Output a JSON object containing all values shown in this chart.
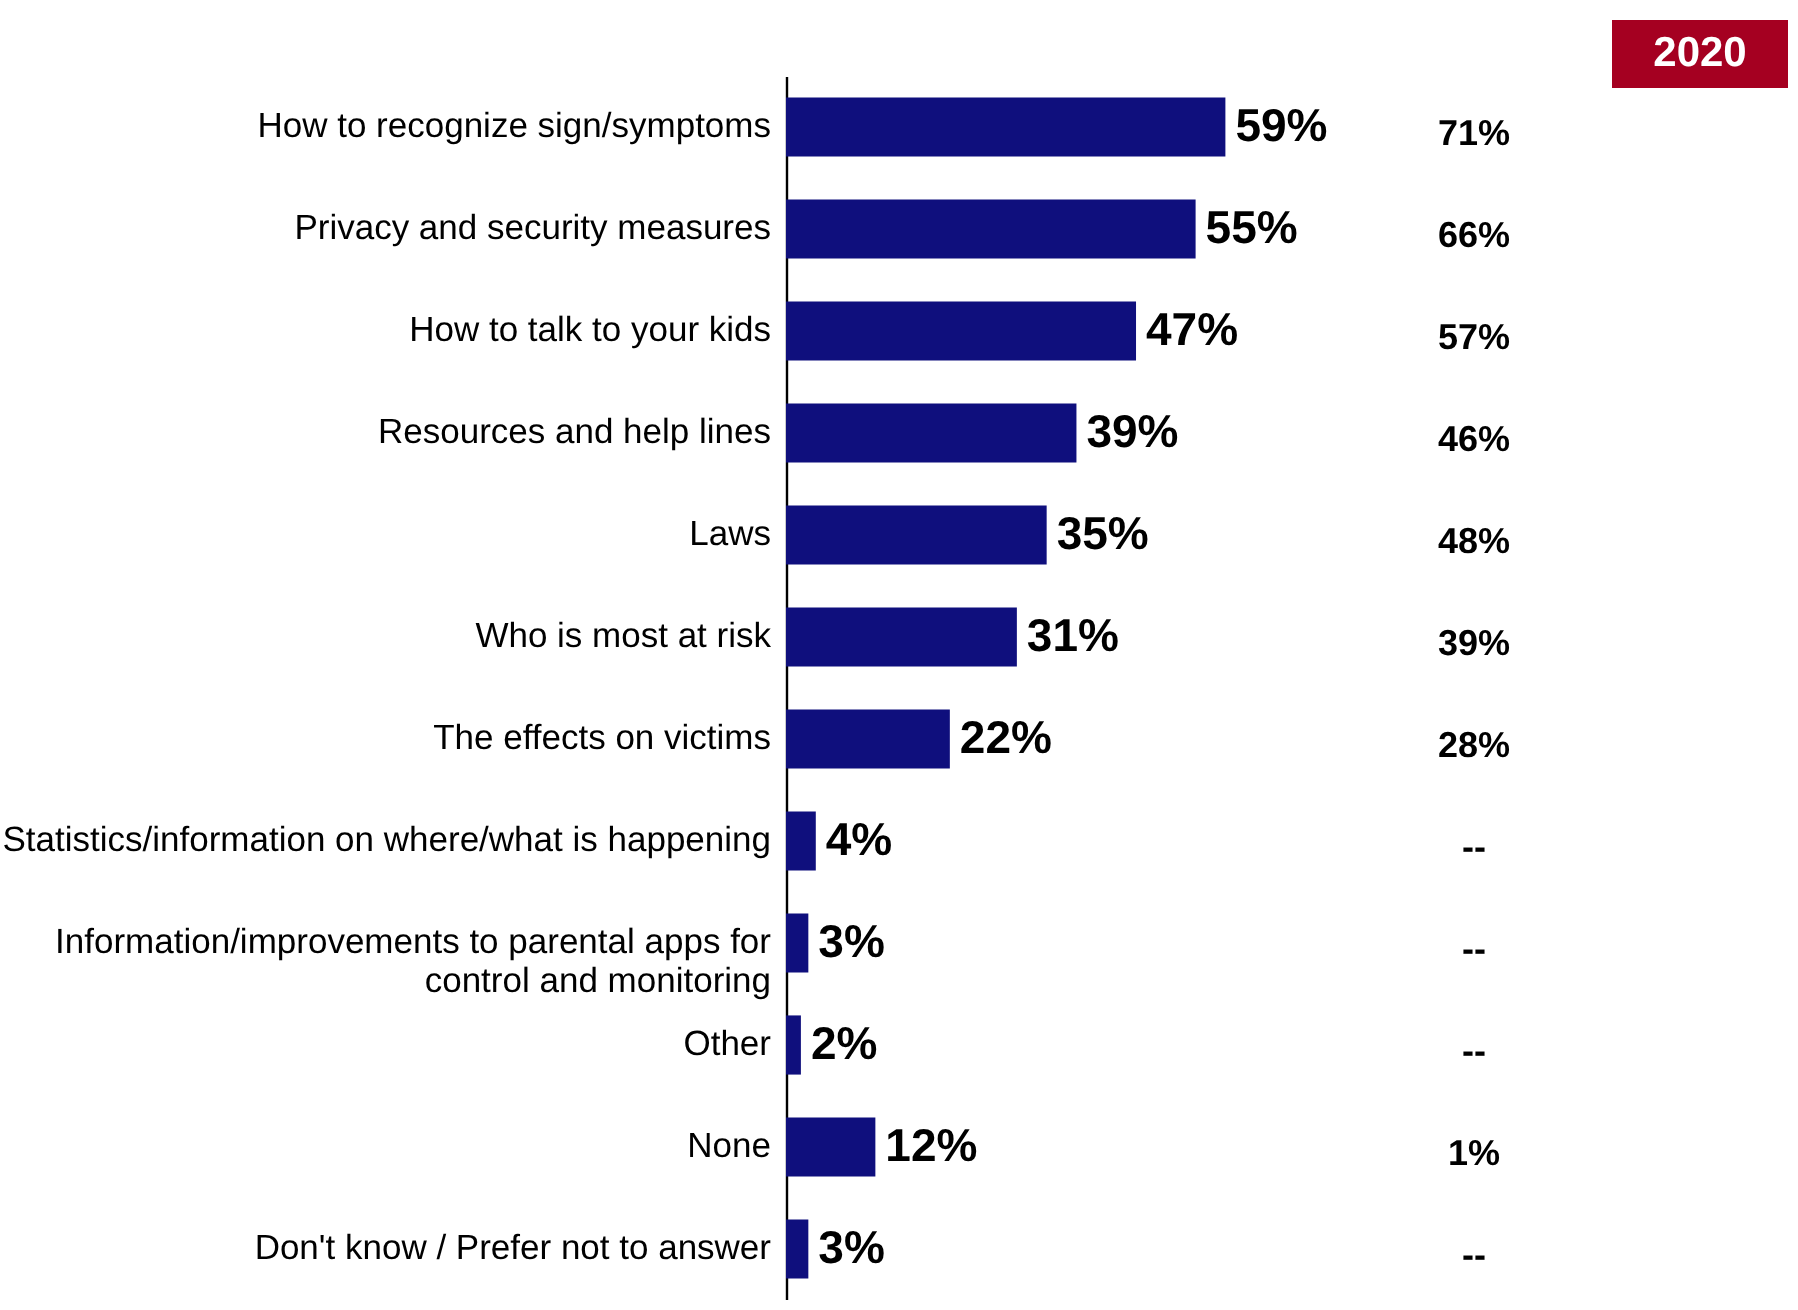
{
  "chart_data": {
    "type": "bar",
    "orientation": "horizontal",
    "data_labels": true,
    "categories": [
      "How to recognize sign/symptoms",
      "Privacy and security measures",
      "How to talk to your kids",
      "Resources and help lines",
      "Laws",
      "Who is most at risk",
      "The effects on victims",
      "Statistics/information on where/what is happening",
      "Information/improvements to parental apps for control and monitoring",
      "Other",
      "None",
      "Don't know / Prefer not to answer"
    ],
    "series": [
      {
        "color": "#0f0f7d",
        "values": [
          59,
          55,
          47,
          39,
          35,
          31,
          22,
          4,
          3,
          2,
          12,
          3
        ],
        "value_labels": [
          "59%",
          "55%",
          "47%",
          "39%",
          "35%",
          "31%",
          "22%",
          "4%",
          "3%",
          "2%",
          "12%",
          "3%"
        ]
      }
    ],
    "annotations": [
      "2020",
      "71%",
      "66%",
      "57%",
      "46%",
      "48%",
      "39%",
      "28%",
      "--",
      "--",
      "--",
      "1%",
      "--"
    ]
  }
}
